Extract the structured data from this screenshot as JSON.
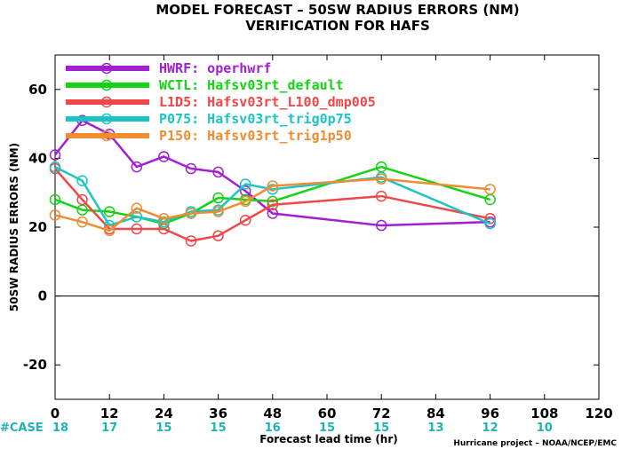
{
  "chart_data": {
    "type": "line",
    "title": "MODEL FORECAST – 50SW RADIUS ERRORS (NM)",
    "subtitle": "VERIFICATION FOR HAFS",
    "xlabel": "Forecast lead time (hr)",
    "ylabel": "50SW RADIUS ERRORS (NM)",
    "xlim": [
      0,
      120
    ],
    "ylim": [
      -30,
      70
    ],
    "xticks": [
      0,
      12,
      24,
      36,
      48,
      60,
      72,
      84,
      96,
      108,
      120
    ],
    "yticks": [
      -20,
      0,
      20,
      40,
      60
    ],
    "zero_line": true,
    "legend_position": "top-left",
    "case_label": "#CASE",
    "case_counts": [
      {
        "x": 0,
        "n": 18
      },
      {
        "x": 12,
        "n": 17
      },
      {
        "x": 24,
        "n": 15
      },
      {
        "x": 36,
        "n": 15
      },
      {
        "x": 48,
        "n": 16
      },
      {
        "x": 60,
        "n": 15
      },
      {
        "x": 72,
        "n": 15
      },
      {
        "x": 84,
        "n": 13
      },
      {
        "x": 96,
        "n": 12
      },
      {
        "x": 108,
        "n": 10
      }
    ],
    "series": [
      {
        "code": "HWRF:",
        "name": "operhwrf",
        "color": "#a21fd2",
        "x": [
          0,
          6,
          12,
          18,
          24,
          30,
          36,
          42,
          48,
          72,
          96
        ],
        "y": [
          41,
          51,
          47,
          37.5,
          40.5,
          37,
          36,
          30.5,
          24,
          20.5,
          21.5
        ]
      },
      {
        "code": "WCTL:",
        "name": "Hafsv03rt_default",
        "color": "#14d414",
        "x": [
          0,
          6,
          12,
          18,
          24,
          30,
          36,
          42,
          48,
          72,
          96
        ],
        "y": [
          28,
          25,
          24.5,
          23,
          21,
          24,
          28.5,
          28,
          27.5,
          37.5,
          28
        ]
      },
      {
        "code": "L1D5:",
        "name": "Hafsv03rt_L100_dmp005",
        "color": "#f04848",
        "x": [
          0,
          6,
          12,
          18,
          24,
          30,
          36,
          42,
          48,
          72,
          96
        ],
        "y": [
          37,
          28,
          19.5,
          19.5,
          19.5,
          16,
          17.5,
          22,
          26.5,
          29,
          22.5
        ]
      },
      {
        "code": "P075:",
        "name": "Hafsv03rt_trig0p75",
        "color": "#1cc4c4",
        "x": [
          0,
          6,
          12,
          18,
          24,
          30,
          36,
          42,
          48,
          72,
          96
        ],
        "y": [
          37.5,
          33.5,
          20.5,
          23,
          21.5,
          24.5,
          25,
          32.5,
          31,
          34.5,
          21
        ]
      },
      {
        "code": "P150:",
        "name": "Hafsv03rt_trig1p50",
        "color": "#f08c32",
        "x": [
          0,
          6,
          12,
          18,
          24,
          30,
          36,
          42,
          48,
          72,
          96
        ],
        "y": [
          23.5,
          21.5,
          19,
          25.5,
          22.5,
          24,
          24.5,
          27.5,
          32,
          34,
          31
        ]
      }
    ],
    "credit": "Hurricane project – NOAA/NCEP/EMC"
  }
}
